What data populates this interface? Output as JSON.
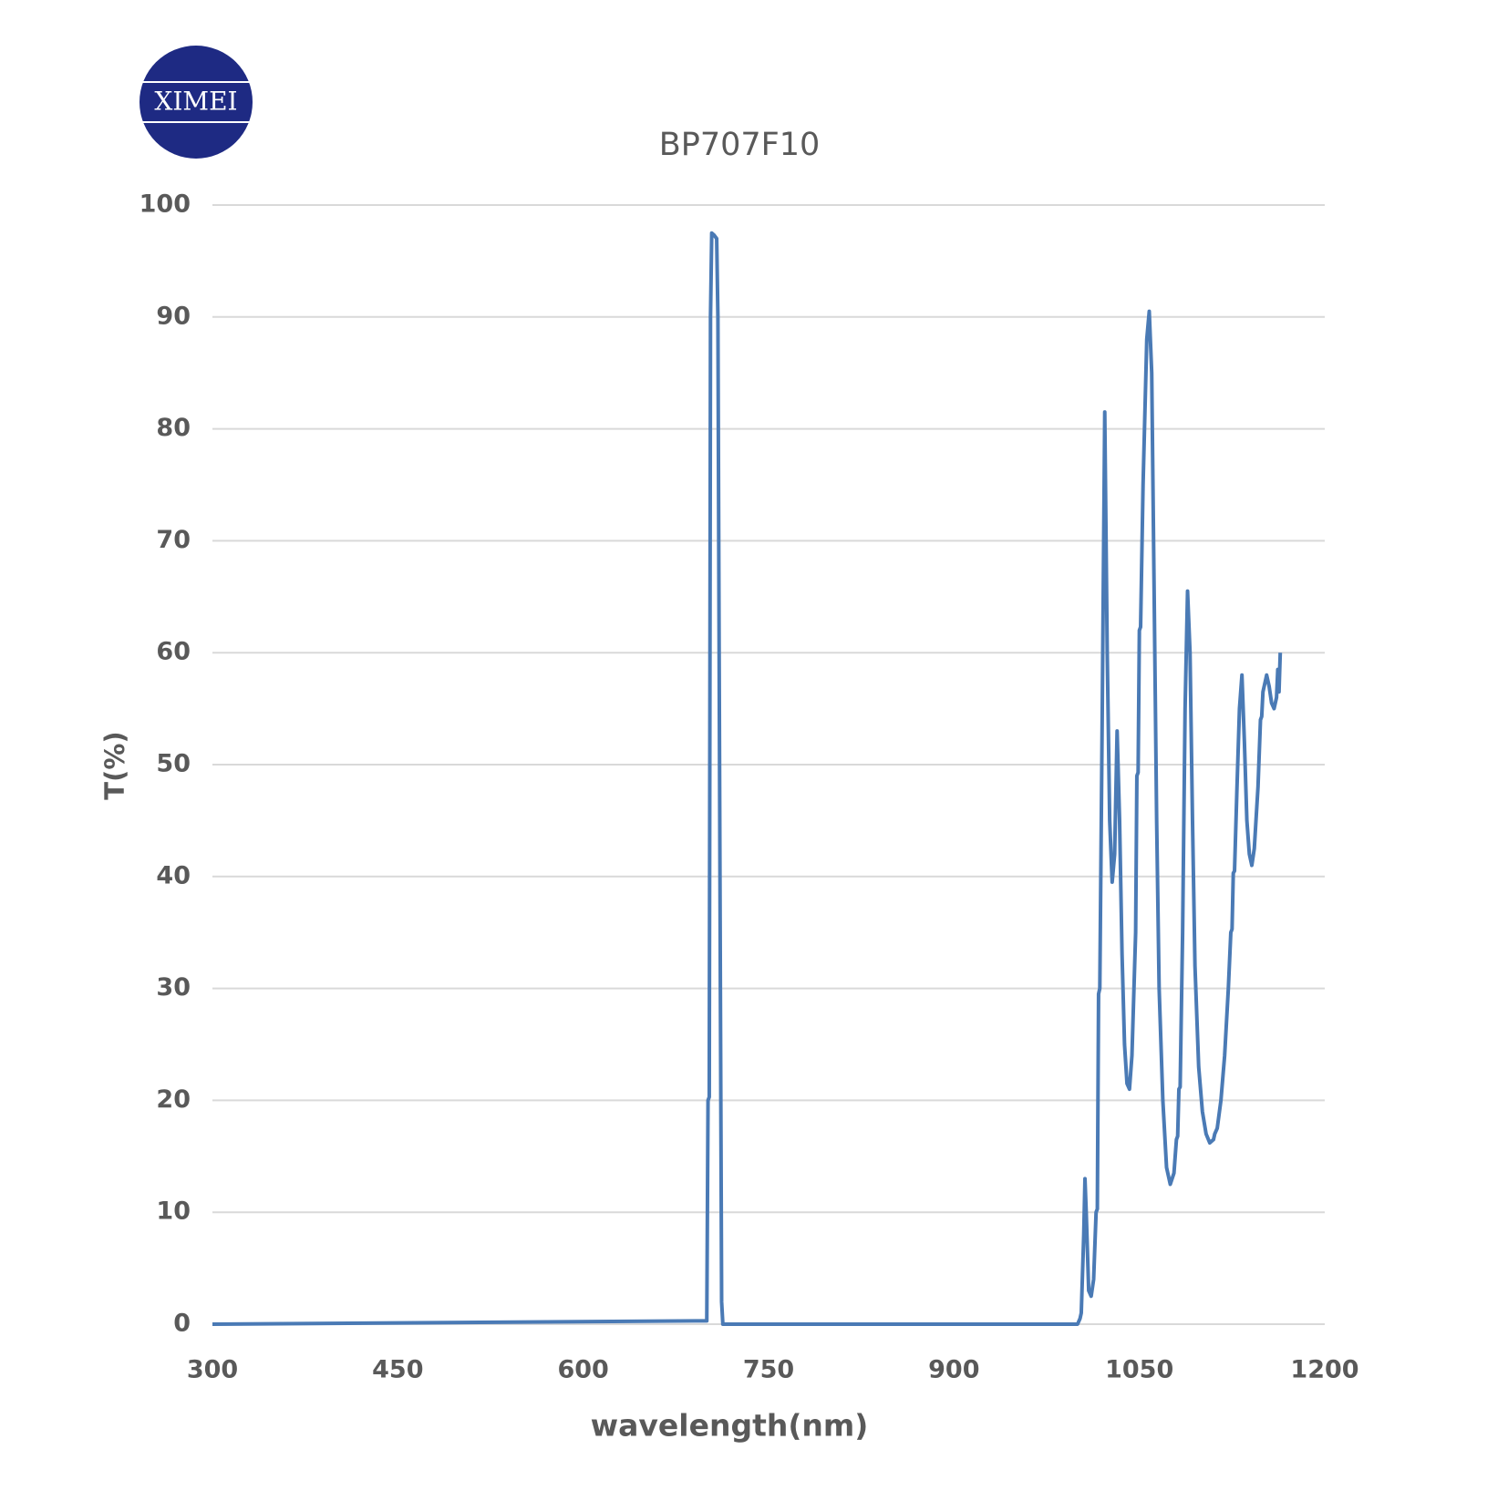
{
  "logo": {
    "text": "XIMEI"
  },
  "chart_data": {
    "type": "line",
    "title": "BP707F10",
    "x_label": "wavelength(nm)",
    "y_label": "T(%)",
    "xlim": [
      300,
      1200
    ],
    "xticks": [
      300,
      450,
      600,
      750,
      900,
      1050,
      1200
    ],
    "ylim": [
      0,
      100
    ],
    "yticks": [
      0,
      10,
      20,
      30,
      40,
      50,
      60,
      70,
      80,
      90,
      100
    ],
    "grid": true,
    "series": [
      {
        "color": "#4a7ab5",
        "x": [
          300,
          700,
          701,
          702,
          703,
          704,
          706,
          708,
          709,
          711,
          712,
          713,
          1000,
          1002,
          1003,
          1005,
          1006,
          1007,
          1009,
          1011,
          1013,
          1015,
          1016,
          1017,
          1018,
          1020,
          1022,
          1024,
          1026,
          1028,
          1030,
          1032,
          1034,
          1036,
          1038,
          1040,
          1042,
          1044,
          1047,
          1048,
          1049,
          1050,
          1051,
          1053,
          1056,
          1058,
          1060,
          1062,
          1064,
          1066,
          1069,
          1072,
          1075,
          1078,
          1080,
          1081,
          1082,
          1083,
          1085,
          1087,
          1089,
          1091,
          1093,
          1095,
          1098,
          1101,
          1104,
          1107,
          1110,
          1111,
          1113,
          1116,
          1119,
          1122,
          1124,
          1125,
          1126,
          1127,
          1129,
          1131,
          1133,
          1135,
          1137,
          1139,
          1141,
          1143,
          1146,
          1148,
          1149,
          1150,
          1151,
          1153,
          1155,
          1157,
          1159,
          1161,
          1162,
          1163,
          1164
        ],
        "values": [
          0,
          0.3,
          20,
          20.3,
          90,
          97.5,
          97.3,
          97,
          90,
          30,
          2,
          0,
          0,
          0.5,
          1,
          8,
          13,
          10,
          3,
          2.5,
          4,
          10,
          10.3,
          29.5,
          30,
          55,
          81.5,
          60,
          45,
          39.5,
          42,
          53,
          45,
          33,
          25,
          21.5,
          21,
          24,
          35,
          49,
          49.3,
          62,
          62.3,
          75,
          88,
          90.5,
          85,
          65,
          45,
          30,
          20,
          14,
          12.5,
          13.5,
          16.5,
          16.8,
          21,
          21.2,
          35,
          55,
          65.5,
          60,
          45,
          32,
          23,
          19,
          17,
          16.2,
          16.5,
          17,
          17.5,
          20,
          24,
          30,
          35,
          35.3,
          40.3,
          40.5,
          48,
          55,
          58,
          52,
          45,
          42,
          41,
          42.5,
          48,
          54,
          54.3,
          56.5,
          57,
          58,
          57,
          55.5,
          55,
          56,
          58.5,
          56.5,
          60
        ]
      }
    ]
  }
}
